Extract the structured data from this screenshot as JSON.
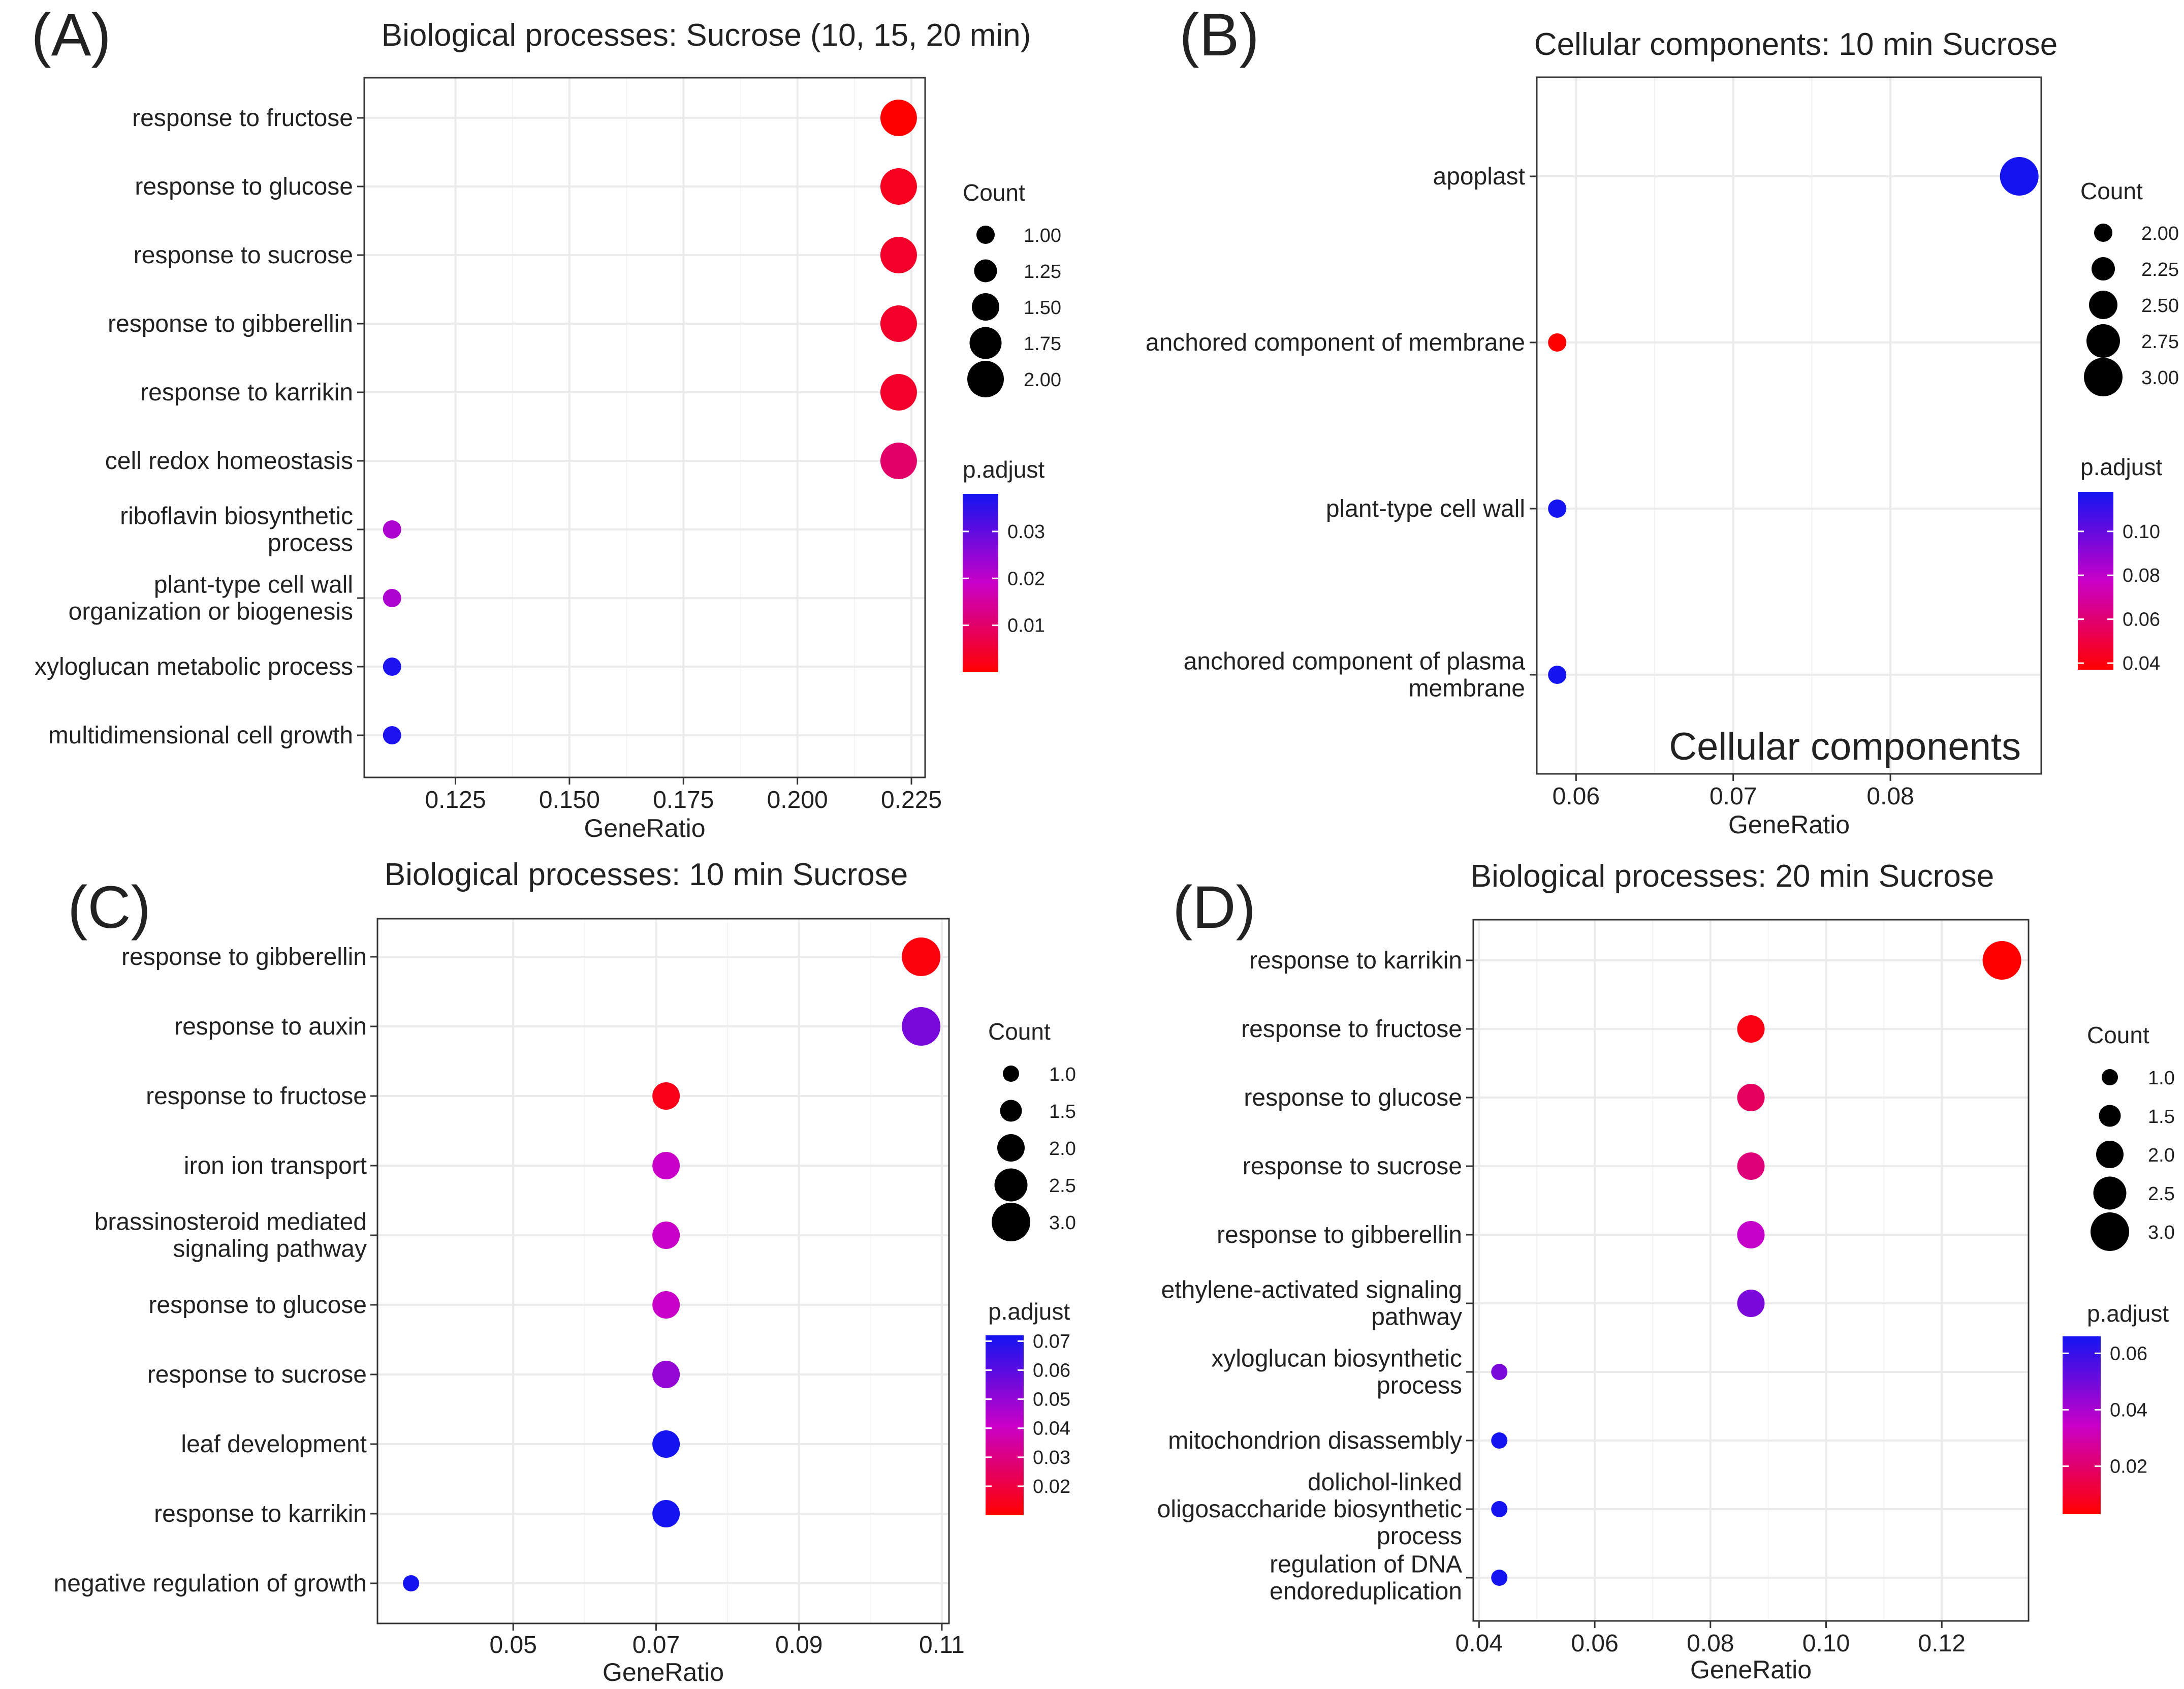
{
  "chart_data": [
    {
      "panel_label": "(A)",
      "type": "scatter",
      "title": "Biological processes: Sucrose (10, 15, 20 min)",
      "xlabel": "GeneRatio",
      "xlim": [
        0.105,
        0.228
      ],
      "xticks": [
        0.125,
        0.15,
        0.175,
        0.2,
        0.225
      ],
      "xtick_labels": [
        "0.125",
        "0.150",
        "0.175",
        "0.200",
        "0.225"
      ],
      "categories": [
        [
          "response to fructose"
        ],
        [
          "response to glucose"
        ],
        [
          "response to sucrose"
        ],
        [
          "response to gibberellin"
        ],
        [
          "response to karrikin"
        ],
        [
          "cell redox homeostasis"
        ],
        [
          "riboflavin biosynthetic",
          "process"
        ],
        [
          "plant-type cell wall",
          "organization or biogenesis"
        ],
        [
          "xyloglucan metabolic process"
        ],
        [
          "multidimensional cell growth"
        ]
      ],
      "gene_ratio": [
        0.2222,
        0.2222,
        0.2222,
        0.2222,
        0.2222,
        0.2222,
        0.1111,
        0.1111,
        0.1111,
        0.1111
      ],
      "count": [
        2,
        2,
        2,
        2,
        2,
        2,
        1,
        1,
        1,
        1
      ],
      "p_adjust": [
        0.0,
        0.003,
        0.004,
        0.004,
        0.004,
        0.01,
        0.022,
        0.022,
        0.037,
        0.037
      ],
      "legend_count": {
        "title": "Count",
        "values": [
          1.0,
          1.25,
          1.5,
          1.75,
          2.0
        ],
        "labels": [
          "1.00",
          "1.25",
          "1.50",
          "1.75",
          "2.00"
        ]
      },
      "legend_padjust": {
        "title": "p.adjust",
        "min": 0.0,
        "max": 0.038,
        "ticks": [
          0.01,
          0.02,
          0.03
        ],
        "labels": [
          "0.01",
          "0.02",
          "0.03"
        ]
      },
      "size_range": [
        1,
        2
      ]
    },
    {
      "panel_label": "(B)",
      "type": "scatter",
      "title": "Cellular components: 10 min Sucrose",
      "xlabel": "GeneRatio",
      "xlim": [
        0.0575,
        0.0896
      ],
      "xticks": [
        0.06,
        0.07,
        0.08
      ],
      "xtick_labels": [
        "0.06",
        "0.07",
        "0.08"
      ],
      "annotation": "Cellular components",
      "categories": [
        [
          "apoplast"
        ],
        [
          "anchored component of membrane"
        ],
        [
          "plant-type cell wall"
        ],
        [
          "anchored component of plasma",
          "membrane"
        ]
      ],
      "gene_ratio": [
        0.0882,
        0.0588,
        0.0588,
        0.0588
      ],
      "count": [
        3,
        2,
        2,
        2
      ],
      "p_adjust": [
        0.118,
        0.037,
        0.118,
        0.118
      ],
      "legend_count": {
        "title": "Count",
        "values": [
          2.0,
          2.25,
          2.5,
          2.75,
          3.0
        ],
        "labels": [
          "2.00",
          "2.25",
          "2.50",
          "2.75",
          "3.00"
        ]
      },
      "legend_padjust": {
        "title": "p.adjust",
        "min": 0.037,
        "max": 0.118,
        "ticks": [
          0.04,
          0.06,
          0.08,
          0.1
        ],
        "labels": [
          "0.04",
          "0.06",
          "0.08",
          "0.10"
        ]
      },
      "size_range": [
        2,
        3
      ]
    },
    {
      "panel_label": "(C)",
      "type": "scatter",
      "title": "Biological processes: 10 min Sucrose",
      "xlabel": "GeneRatio",
      "xlim": [
        0.031,
        0.111
      ],
      "xticks": [
        0.05,
        0.07,
        0.09,
        0.11
      ],
      "xtick_labels": [
        "0.05",
        "0.07",
        "0.09",
        "0.11"
      ],
      "categories": [
        [
          "response to gibberellin"
        ],
        [
          "response to auxin"
        ],
        [
          "response to fructose"
        ],
        [
          "iron ion transport"
        ],
        [
          "brassinosteroid mediated",
          "signaling pathway"
        ],
        [
          "response to glucose"
        ],
        [
          "response to sucrose"
        ],
        [
          "leaf development"
        ],
        [
          "response to karrikin"
        ],
        [
          "negative regulation of growth"
        ]
      ],
      "gene_ratio": [
        0.1071,
        0.1071,
        0.0714,
        0.0714,
        0.0714,
        0.0714,
        0.0714,
        0.0714,
        0.0714,
        0.0357
      ],
      "count": [
        3,
        3,
        2,
        2,
        2,
        2,
        2,
        2,
        2,
        1
      ],
      "p_adjust": [
        0.012,
        0.055,
        0.014,
        0.041,
        0.041,
        0.041,
        0.05,
        0.072,
        0.072,
        0.072
      ],
      "legend_count": {
        "title": "Count",
        "values": [
          1.0,
          1.5,
          2.0,
          2.5,
          3.0
        ],
        "labels": [
          "1.0",
          "1.5",
          "2.0",
          "2.5",
          "3.0"
        ]
      },
      "legend_padjust": {
        "title": "p.adjust",
        "min": 0.01,
        "max": 0.072,
        "ticks": [
          0.02,
          0.03,
          0.04,
          0.05,
          0.06,
          0.07
        ],
        "labels": [
          "0.02",
          "0.03",
          "0.04",
          "0.05",
          "0.06",
          "0.07"
        ]
      },
      "size_range": [
        1,
        3
      ]
    },
    {
      "panel_label": "(D)",
      "type": "scatter",
      "title": "Biological processes: 20 min Sucrose",
      "xlabel": "GeneRatio",
      "xlim": [
        0.039,
        0.135
      ],
      "xticks": [
        0.04,
        0.06,
        0.08,
        0.1,
        0.12
      ],
      "xtick_labels": [
        "0.04",
        "0.06",
        "0.08",
        "0.10",
        "0.12"
      ],
      "categories": [
        [
          "response to karrikin"
        ],
        [
          "response to fructose"
        ],
        [
          "response to glucose"
        ],
        [
          "response to sucrose"
        ],
        [
          "response to gibberellin"
        ],
        [
          "ethylene-activated signaling",
          "pathway"
        ],
        [
          "xyloglucan biosynthetic",
          "process"
        ],
        [
          "mitochondrion disassembly"
        ],
        [
          "dolichol-linked",
          "oligosaccharide biosynthetic",
          "process"
        ],
        [
          "regulation of DNA",
          "endoreduplication"
        ]
      ],
      "gene_ratio": [
        0.1304,
        0.087,
        0.087,
        0.087,
        0.087,
        0.087,
        0.0435,
        0.0435,
        0.0435,
        0.0435
      ],
      "count": [
        3,
        2,
        2,
        2,
        2,
        2,
        1,
        1,
        1,
        1
      ],
      "p_adjust": [
        0.003,
        0.006,
        0.018,
        0.022,
        0.035,
        0.048,
        0.048,
        0.066,
        0.066,
        0.066
      ],
      "legend_count": {
        "title": "Count",
        "values": [
          1.0,
          1.5,
          2.0,
          2.5,
          3.0
        ],
        "labels": [
          "1.0",
          "1.5",
          "2.0",
          "2.5",
          "3.0"
        ]
      },
      "legend_padjust": {
        "title": "p.adjust",
        "min": 0.003,
        "max": 0.066,
        "ticks": [
          0.02,
          0.04,
          0.06
        ],
        "labels": [
          "0.02",
          "0.04",
          "0.06"
        ]
      },
      "size_range": [
        1,
        3
      ]
    }
  ]
}
